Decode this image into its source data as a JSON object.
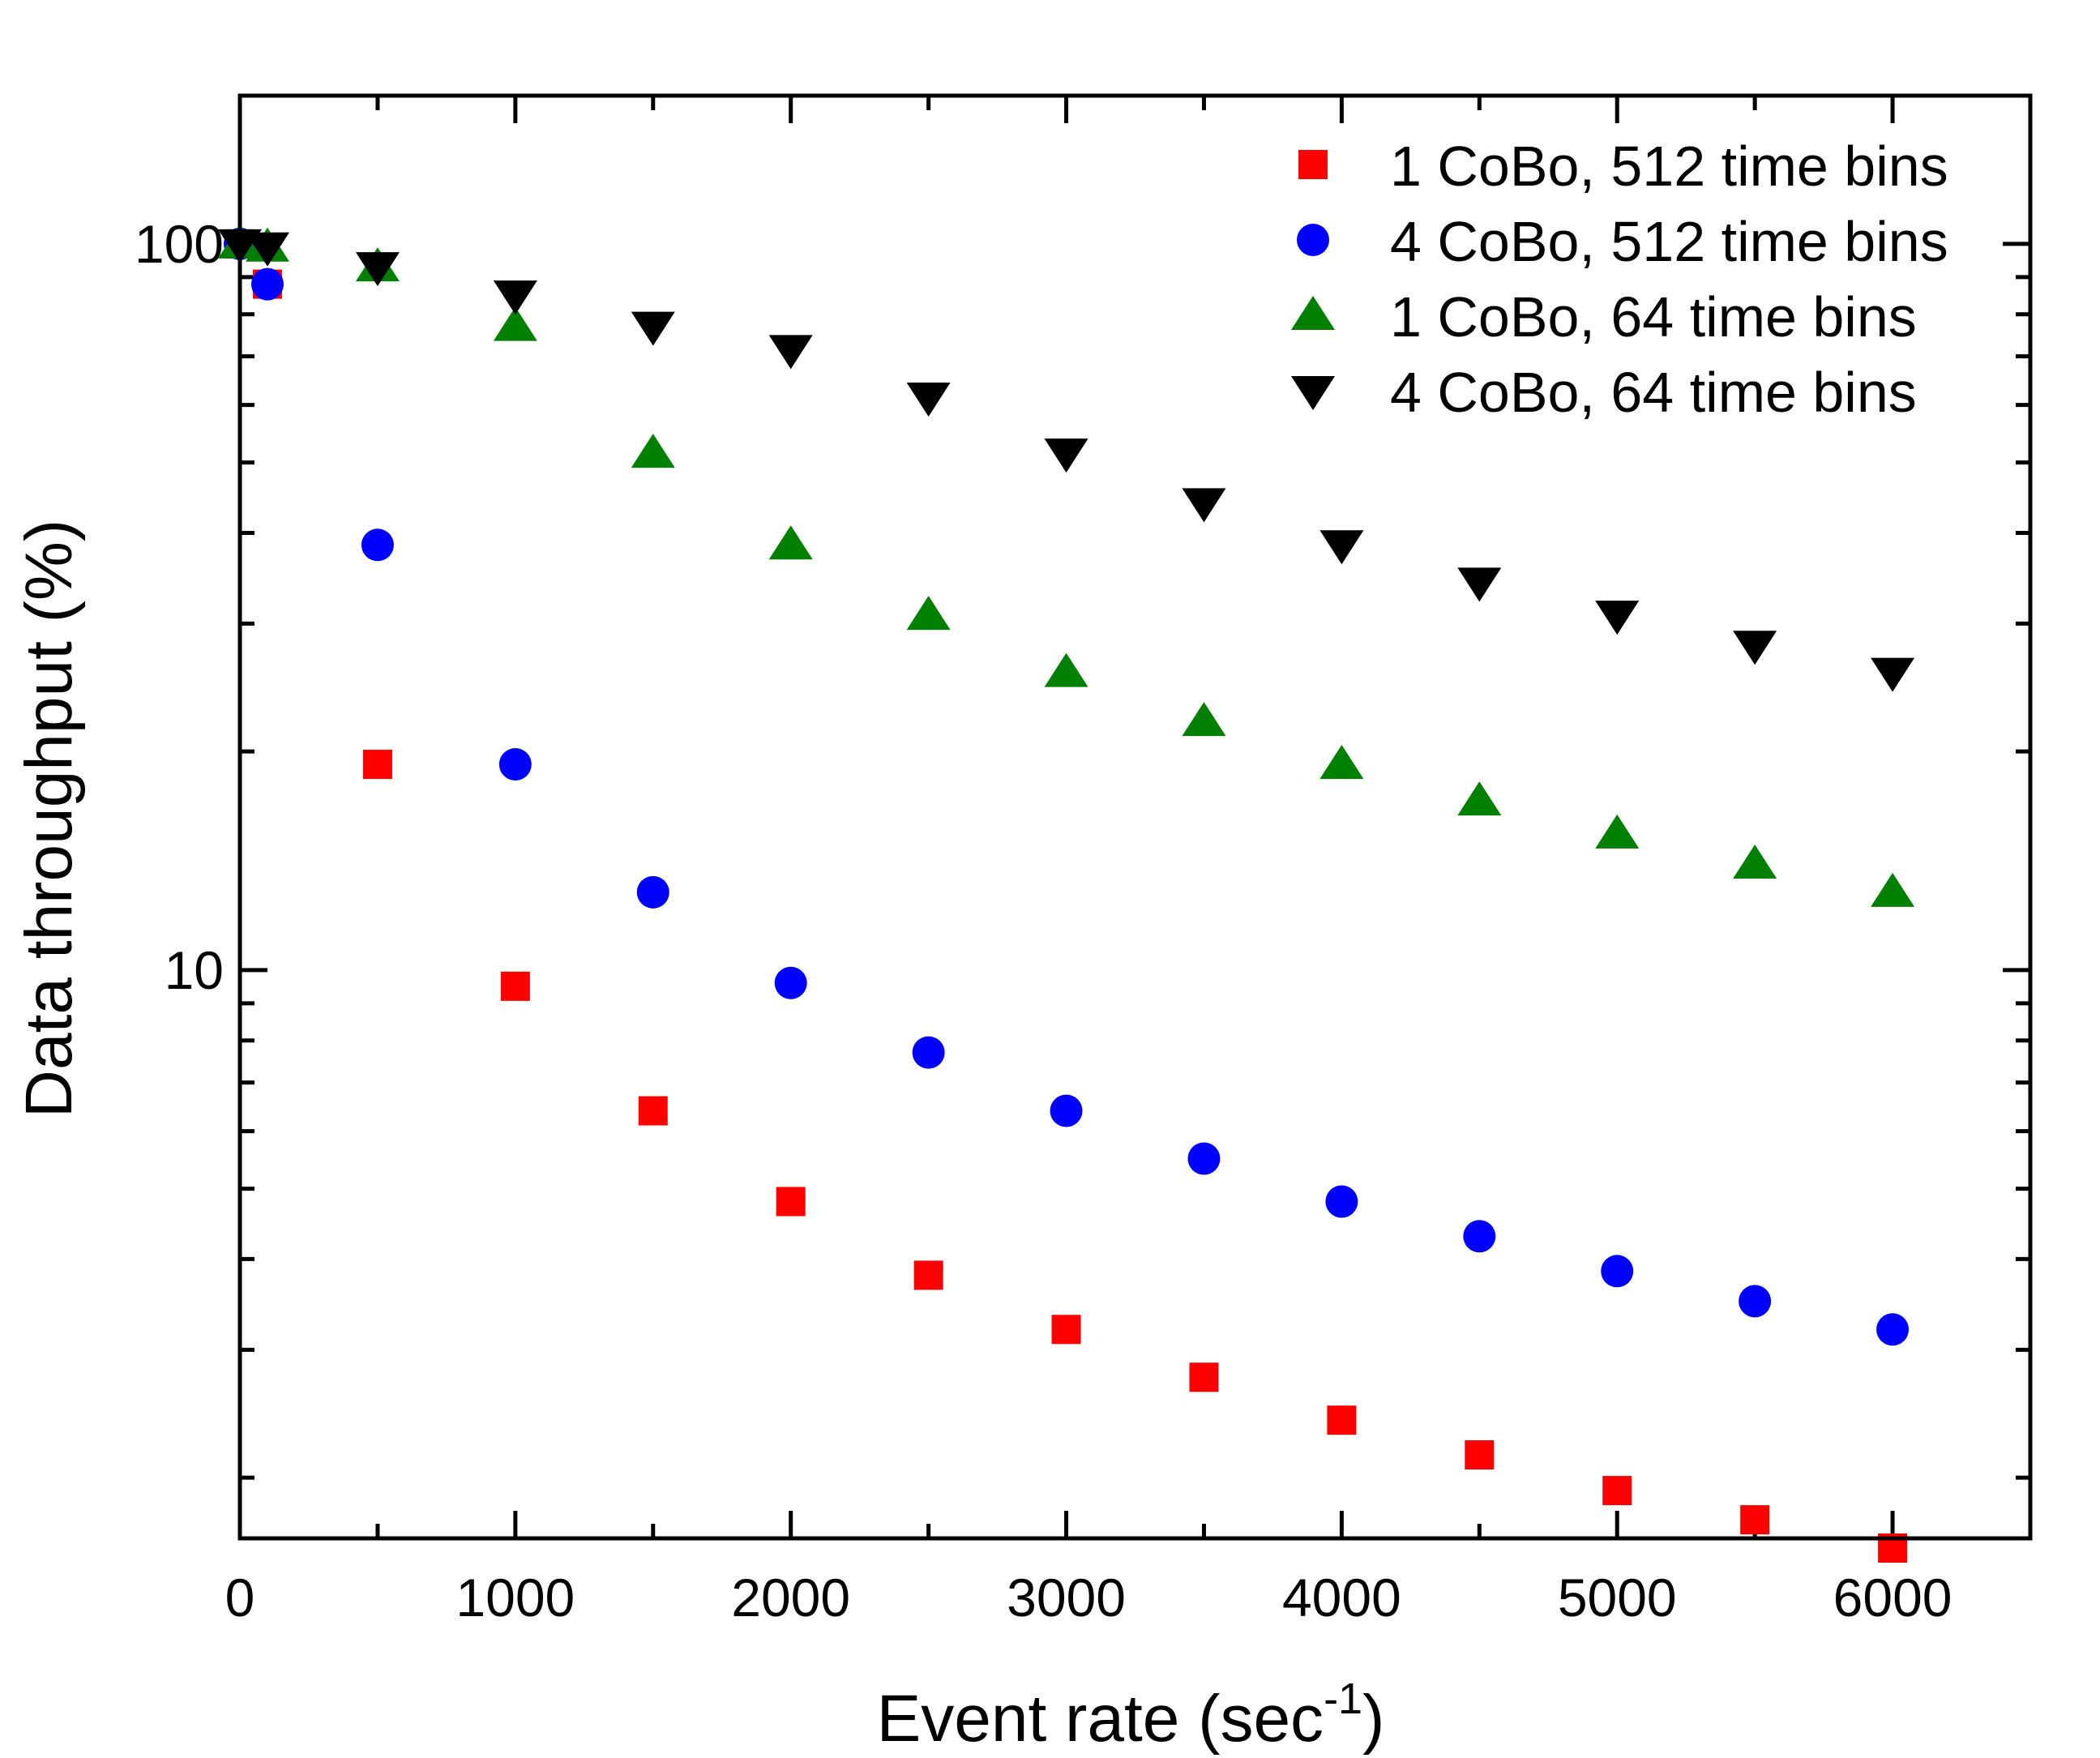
{
  "chart_data": {
    "type": "scatter",
    "title": "",
    "xlabel": "Event rate (sec",
    "xlabel_superscript": "-1",
    "xlabel_suffix": ")",
    "ylabel": "Data throughput (%)",
    "xlim": [
      0,
      6500
    ],
    "ylim": [
      1.65,
      160
    ],
    "yscale": "log",
    "x_ticks": [
      0,
      1000,
      2000,
      3000,
      4000,
      5000,
      6000
    ],
    "x_tick_labels": [
      "0",
      "1000",
      "2000",
      "3000",
      "4000",
      "5000",
      "6000"
    ],
    "y_ticks": [
      10,
      100
    ],
    "y_tick_labels": [
      "10",
      "100"
    ],
    "grid": false,
    "legend_position": "top-right",
    "series": [
      {
        "name": "1 CoBo, 512 time bins",
        "marker": "square",
        "color": "#ff0000",
        "x": [
          0,
          100,
          500,
          1000,
          1500,
          2000,
          2500,
          3000,
          3500,
          4000,
          4500,
          5000,
          5500,
          6000
        ],
        "y": [
          100,
          88,
          19.2,
          9.5,
          6.4,
          4.8,
          3.8,
          3.2,
          2.75,
          2.4,
          2.15,
          1.92,
          1.75,
          1.6
        ]
      },
      {
        "name": "4 CoBo, 512 time bins",
        "marker": "circle",
        "color": "#0000ff",
        "x": [
          0,
          100,
          500,
          1000,
          1500,
          2000,
          2500,
          3000,
          3500,
          4000,
          4500,
          5000,
          5500,
          6000
        ],
        "y": [
          100,
          88,
          38.5,
          19.2,
          12.8,
          9.6,
          7.7,
          6.4,
          5.5,
          4.8,
          4.3,
          3.85,
          3.5,
          3.2
        ]
      },
      {
        "name": "1 CoBo, 64 time bins",
        "marker": "triangle-up",
        "color": "#008000",
        "x": [
          0,
          100,
          500,
          1000,
          1500,
          2000,
          2500,
          3000,
          3500,
          4000,
          4500,
          5000,
          5500,
          6000
        ],
        "y": [
          100,
          99,
          93,
          77,
          51.5,
          38.5,
          30.8,
          25.7,
          22,
          19.2,
          17.1,
          15.4,
          14,
          12.8
        ]
      },
      {
        "name": "4 CoBo, 64 time bins",
        "marker": "triangle-down",
        "color": "#000000",
        "x": [
          0,
          100,
          500,
          1000,
          1500,
          2000,
          2500,
          3000,
          3500,
          4000,
          4500,
          5000,
          5500,
          6000
        ],
        "y": [
          100,
          99,
          93,
          85,
          77,
          71.5,
          61.5,
          51.5,
          44,
          38.5,
          34.2,
          30.8,
          28,
          25.7
        ]
      }
    ]
  }
}
